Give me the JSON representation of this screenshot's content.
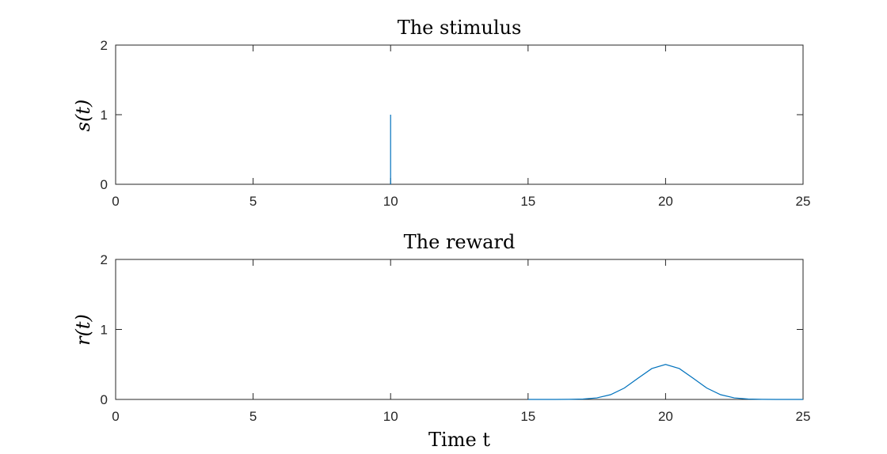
{
  "chart_data": [
    {
      "type": "line",
      "title": "The stimulus",
      "ylabel": "s(t)",
      "xlabel": "",
      "xlim": [
        0,
        25
      ],
      "ylim": [
        0,
        2
      ],
      "xticks": [
        0,
        5,
        10,
        15,
        20,
        25
      ],
      "yticks": [
        0,
        1,
        2
      ],
      "grid": false,
      "series": [
        {
          "color": "#0072BD",
          "x": [
            10,
            10
          ],
          "y": [
            0,
            1
          ]
        }
      ]
    },
    {
      "type": "line",
      "title": "The reward",
      "ylabel": "r(t)",
      "xlabel": "Time t",
      "xlim": [
        0,
        25
      ],
      "ylim": [
        0,
        2
      ],
      "xticks": [
        0,
        5,
        10,
        15,
        20,
        25
      ],
      "yticks": [
        0,
        1,
        2
      ],
      "grid": false,
      "series": [
        {
          "color": "#0072BD",
          "x": [
            15,
            15.5,
            16,
            16.5,
            17,
            17.5,
            18,
            18.5,
            19,
            19.5,
            20,
            20.5,
            21,
            21.5,
            22,
            22.5,
            23,
            23.5,
            24,
            24.5,
            25
          ],
          "y": [
            0.0,
            0.0001,
            0.0002,
            0.0017,
            0.0056,
            0.022,
            0.0677,
            0.1623,
            0.3033,
            0.4412,
            0.5,
            0.4412,
            0.3033,
            0.1623,
            0.0677,
            0.022,
            0.0056,
            0.0017,
            0.0002,
            0.0001,
            0.0
          ]
        }
      ]
    }
  ]
}
